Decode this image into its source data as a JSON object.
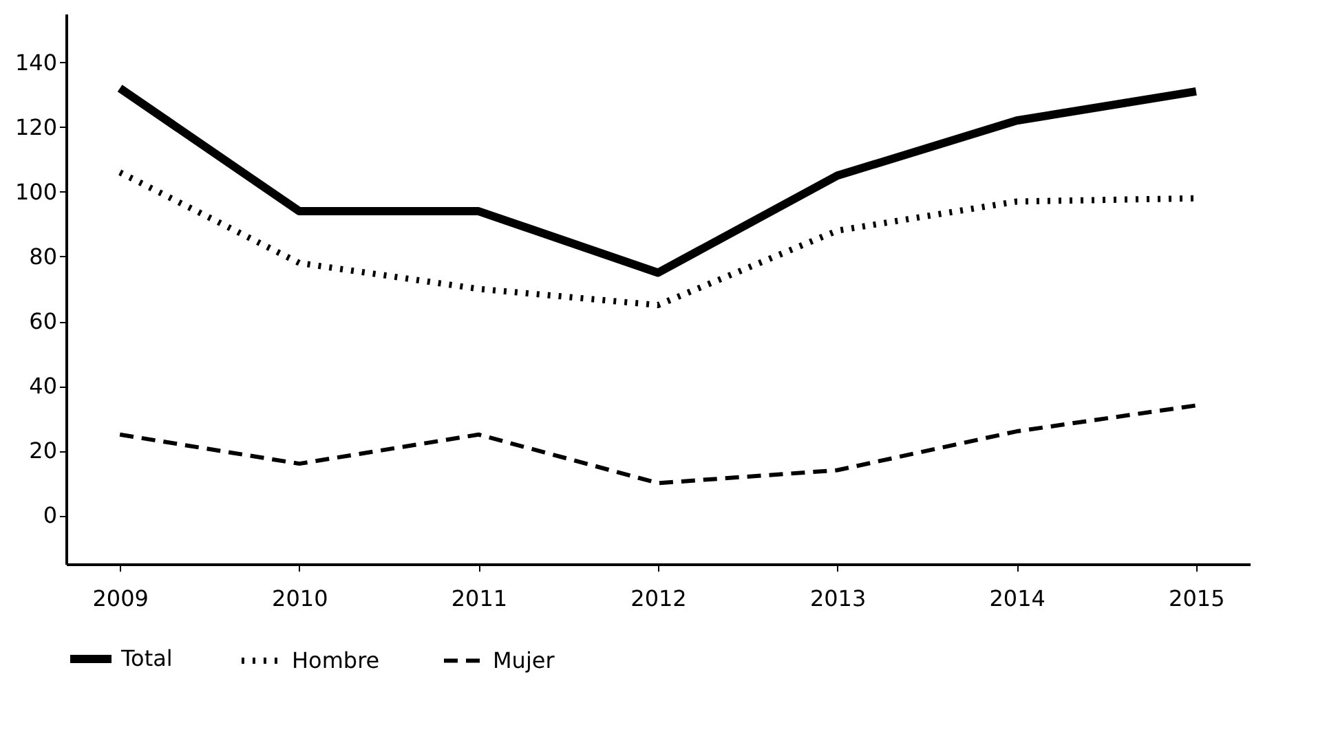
{
  "chart_data": {
    "type": "line",
    "categories": [
      "2009",
      "2010",
      "2011",
      "2012",
      "2013",
      "2014",
      "2015"
    ],
    "series": [
      {
        "name": "Total",
        "color": "#000000",
        "line_style": "solid",
        "values": [
          132,
          94,
          94,
          75,
          105,
          122,
          131
        ]
      },
      {
        "name": "Hombre",
        "color": "#000000",
        "line_style": "dotted",
        "values": [
          106,
          78,
          70,
          65,
          88,
          97,
          98
        ]
      },
      {
        "name": "Mujer",
        "color": "#000000",
        "line_style": "dashed",
        "values": [
          25,
          16,
          25,
          10,
          14,
          26,
          34
        ]
      }
    ],
    "ylim": [
      -15,
      155
    ],
    "yticks": [
      0,
      20,
      40,
      60,
      80,
      100,
      120,
      140
    ],
    "grid": false,
    "legend": "bottom",
    "marker": "none"
  }
}
